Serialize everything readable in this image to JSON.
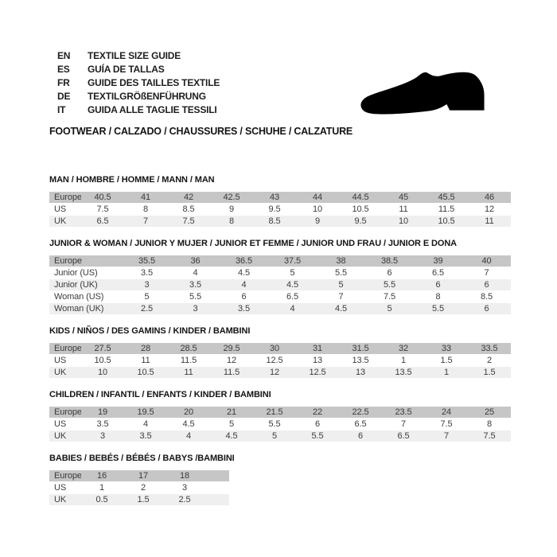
{
  "header": {
    "languages": [
      {
        "code": "EN",
        "label": "TEXTILE SIZE GUIDE"
      },
      {
        "code": "ES",
        "label": "GUÍA DE TALLAS"
      },
      {
        "code": "FR",
        "label": "GUIDE DES TAILLES TEXTILE"
      },
      {
        "code": "DE",
        "label": "TEXTILGRÖßENFÜHRUNG"
      },
      {
        "code": "IT",
        "label": "GUIDA ALLE TAGLIE TESSILI"
      }
    ],
    "category_heading": "FOOTWEAR / CALZADO / CHAUSSURES / SCHUHE / CALZATURE",
    "shoe_icon": "dress-shoe-silhouette"
  },
  "colors": {
    "header_row_bg": "#c6c6c6",
    "alt_row_bg": "#efefef",
    "text": "#3c3c3c",
    "title_text": "#141414",
    "shoe": "#000000"
  },
  "tables": [
    {
      "title": "MAN / HOMBRE / HOMME / MANN / MAN",
      "rows": [
        {
          "label": "Europe",
          "header": true,
          "values": [
            "40.5",
            "41",
            "42",
            "42.5",
            "43",
            "44",
            "44.5",
            "45",
            "45.5",
            "46"
          ]
        },
        {
          "label": "US",
          "values": [
            "7.5",
            "8",
            "8.5",
            "9",
            "9.5",
            "10",
            "10.5",
            "11",
            "11.5",
            "12"
          ]
        },
        {
          "label": "UK",
          "values": [
            "6.5",
            "7",
            "7.5",
            "8",
            "8.5",
            "9",
            "9.5",
            "10",
            "10.5",
            "11"
          ]
        }
      ]
    },
    {
      "title": "JUNIOR & WOMAN / JUNIOR Y MUJER / JUNIOR ET FEMME / JUNIOR UND FRAU / JUNIOR E DONA",
      "rows": [
        {
          "label": "Europe",
          "header": true,
          "values": [
            "35.5",
            "36",
            "36.5",
            "37.5",
            "38",
            "38.5",
            "39",
            "40"
          ]
        },
        {
          "label": "Junior (US)",
          "values": [
            "3.5",
            "4",
            "4.5",
            "5",
            "5.5",
            "6",
            "6.5",
            "7"
          ]
        },
        {
          "label": "Junior (UK)",
          "values": [
            "3",
            "3.5",
            "4",
            "4.5",
            "5",
            "5.5",
            "6",
            "6"
          ]
        },
        {
          "label": "Woman (US)",
          "values": [
            "5",
            "5.5",
            "6",
            "6.5",
            "7",
            "7.5",
            "8",
            "8.5"
          ]
        },
        {
          "label": "Woman (UK)",
          "values": [
            "2.5",
            "3",
            "3.5",
            "4",
            "4.5",
            "5",
            "5.5",
            "6"
          ]
        }
      ]
    },
    {
      "title": "KIDS / NIÑOS / DES GAMINS / KINDER / BAMBINI",
      "rows": [
        {
          "label": "Europe",
          "header": true,
          "values": [
            "27.5",
            "28",
            "28.5",
            "29.5",
            "30",
            "31",
            "31.5",
            "32",
            "33",
            "33.5"
          ]
        },
        {
          "label": "US",
          "values": [
            "10.5",
            "11",
            "11.5",
            "12",
            "12.5",
            "13",
            "13.5",
            "1",
            "1.5",
            "2"
          ]
        },
        {
          "label": "UK",
          "values": [
            "10",
            "10.5",
            "11",
            "11.5",
            "12",
            "12.5",
            "13",
            "13.5",
            "1",
            "1.5"
          ]
        }
      ]
    },
    {
      "title": "CHILDREN / INFANTIL / ENFANTS / KINDER / BAMBINI",
      "rows": [
        {
          "label": "Europe",
          "header": true,
          "values": [
            "19",
            "19.5",
            "20",
            "21",
            "21.5",
            "22",
            "22.5",
            "23.5",
            "24",
            "25"
          ]
        },
        {
          "label": "US",
          "values": [
            "3.5",
            "4",
            "4.5",
            "5",
            "5.5",
            "6",
            "6.5",
            "7",
            "7.5",
            "8"
          ]
        },
        {
          "label": "UK",
          "values": [
            "3",
            "3.5",
            "4",
            "4.5",
            "5",
            "5.5",
            "6",
            "6.5",
            "7",
            "7.5"
          ]
        }
      ]
    },
    {
      "title": "BABIES / BEBÉS / BÉBÉS / BABYS /BAMBINI",
      "rows": [
        {
          "label": "Europe",
          "header": true,
          "values": [
            "16",
            "17",
            "18"
          ]
        },
        {
          "label": "US",
          "values": [
            "1",
            "2",
            "3"
          ]
        },
        {
          "label": "UK",
          "values": [
            "0.5",
            "1.5",
            "2.5"
          ]
        }
      ]
    }
  ]
}
